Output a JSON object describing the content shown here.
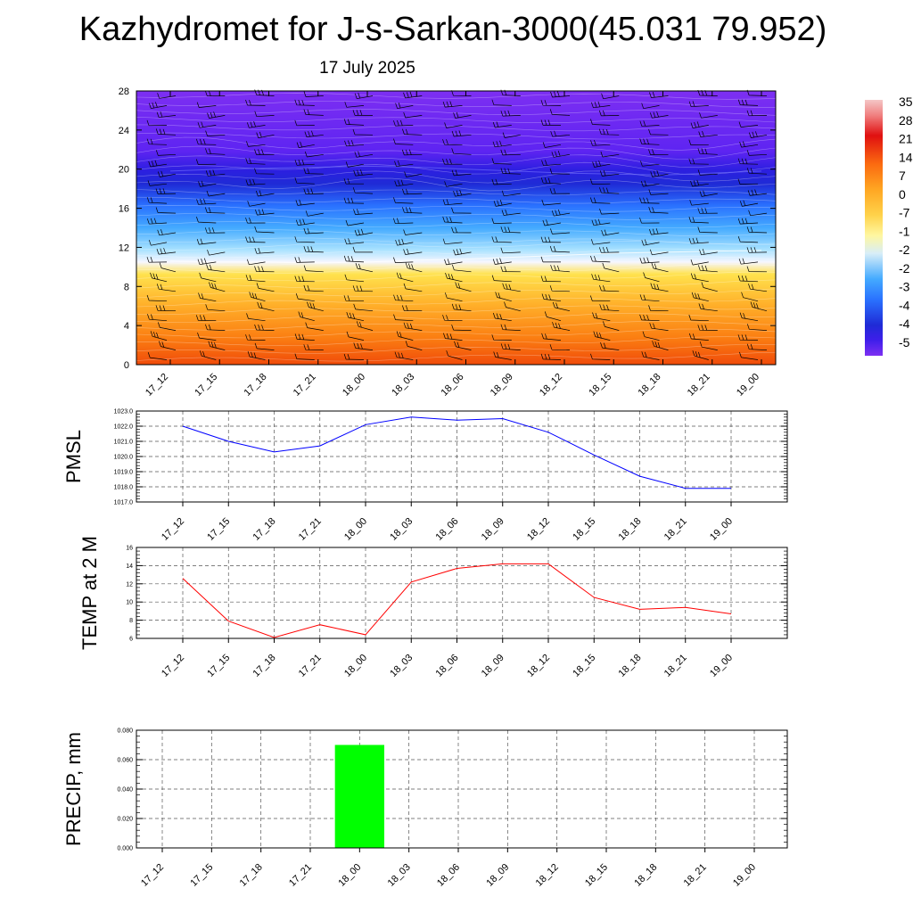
{
  "title": "Kazhydromet for J-s-Sarkan-3000(45.031 79.952)",
  "subtitle": "17 July 2025",
  "colors": {
    "pressure_line": "#0000ff",
    "temp_line": "#ff0000",
    "precip_bar": "#00ff00",
    "wind_barb": "#000000"
  },
  "chart_data": [
    {
      "type": "heatmap",
      "title": "",
      "xlabel": "",
      "ylabel": "",
      "x": [
        "17_12",
        "17_15",
        "17_18",
        "17_21",
        "18_00",
        "18_03",
        "18_06",
        "18_09",
        "18_12",
        "18_15",
        "18_18",
        "18_21",
        "19_00"
      ],
      "yticks": [
        0,
        4,
        8,
        12,
        16,
        20,
        24,
        28
      ],
      "ylim": [
        0,
        28
      ],
      "colorbar_labels": [
        "35",
        "28",
        "21",
        "14",
        "7",
        "0",
        "-7",
        "-1",
        "-2",
        "-2",
        "-3",
        "-4",
        "-4",
        "-5"
      ],
      "colorbar_range": [
        -56,
        35
      ],
      "freezing_level_y": [
        10.6,
        10.5,
        10.5,
        10.4,
        10.5,
        10.7,
        10.8,
        11.0,
        11.2,
        11.4,
        11.5,
        11.6,
        11.7
      ],
      "tropopause_y": [
        19.8,
        20.0,
        20.1,
        20.2,
        20.3,
        20.2,
        20.0,
        19.8,
        19.6,
        19.5,
        19.4,
        19.6,
        19.8
      ],
      "has_wind_barbs": true,
      "grid": false
    },
    {
      "type": "line",
      "ylabel": "PMSL",
      "x": [
        "17_12",
        "17_15",
        "17_18",
        "17_21",
        "18_00",
        "18_03",
        "18_06",
        "18_09",
        "18_12",
        "18_15",
        "18_18",
        "18_21",
        "19_00"
      ],
      "yticks": [
        "1017.0",
        "1018.0",
        "1019.0",
        "1020.0",
        "1021.0",
        "1022.0",
        "1023.0"
      ],
      "ylim": [
        1017.0,
        1023.0
      ],
      "series": [
        {
          "values": [
            1022.0,
            1021.0,
            1020.3,
            1020.7,
            1022.1,
            1022.6,
            1022.4,
            1022.5,
            1021.6,
            1020.1,
            1018.7,
            1017.9,
            1017.9
          ]
        }
      ],
      "grid": true
    },
    {
      "type": "line",
      "ylabel": "TEMP at 2 M",
      "x": [
        "17_12",
        "17_15",
        "17_18",
        "17_21",
        "18_00",
        "18_03",
        "18_06",
        "18_09",
        "18_12",
        "18_15",
        "18_18",
        "18_21",
        "19_00"
      ],
      "yticks": [
        "6",
        "8",
        "10",
        "12",
        "14",
        "16"
      ],
      "ylim": [
        6,
        16
      ],
      "series": [
        {
          "values": [
            12.6,
            7.9,
            6.1,
            7.5,
            6.4,
            12.2,
            13.7,
            14.2,
            14.2,
            10.5,
            9.2,
            9.4,
            8.7
          ]
        }
      ],
      "grid": true
    },
    {
      "type": "bar",
      "ylabel": "PRECIP, mm",
      "categories": [
        "17_12",
        "17_15",
        "17_18",
        "17_21",
        "18_00",
        "18_03",
        "18_06",
        "18_09",
        "18_12",
        "18_15",
        "18_18",
        "18_21",
        "19_00"
      ],
      "values": [
        0,
        0,
        0,
        0,
        0.07,
        0,
        0,
        0,
        0,
        0,
        0,
        0,
        0
      ],
      "yticks": [
        "0.000",
        "0.020",
        "0.040",
        "0.060",
        "0.080"
      ],
      "ylim": [
        0,
        0.08
      ],
      "grid": true
    }
  ]
}
